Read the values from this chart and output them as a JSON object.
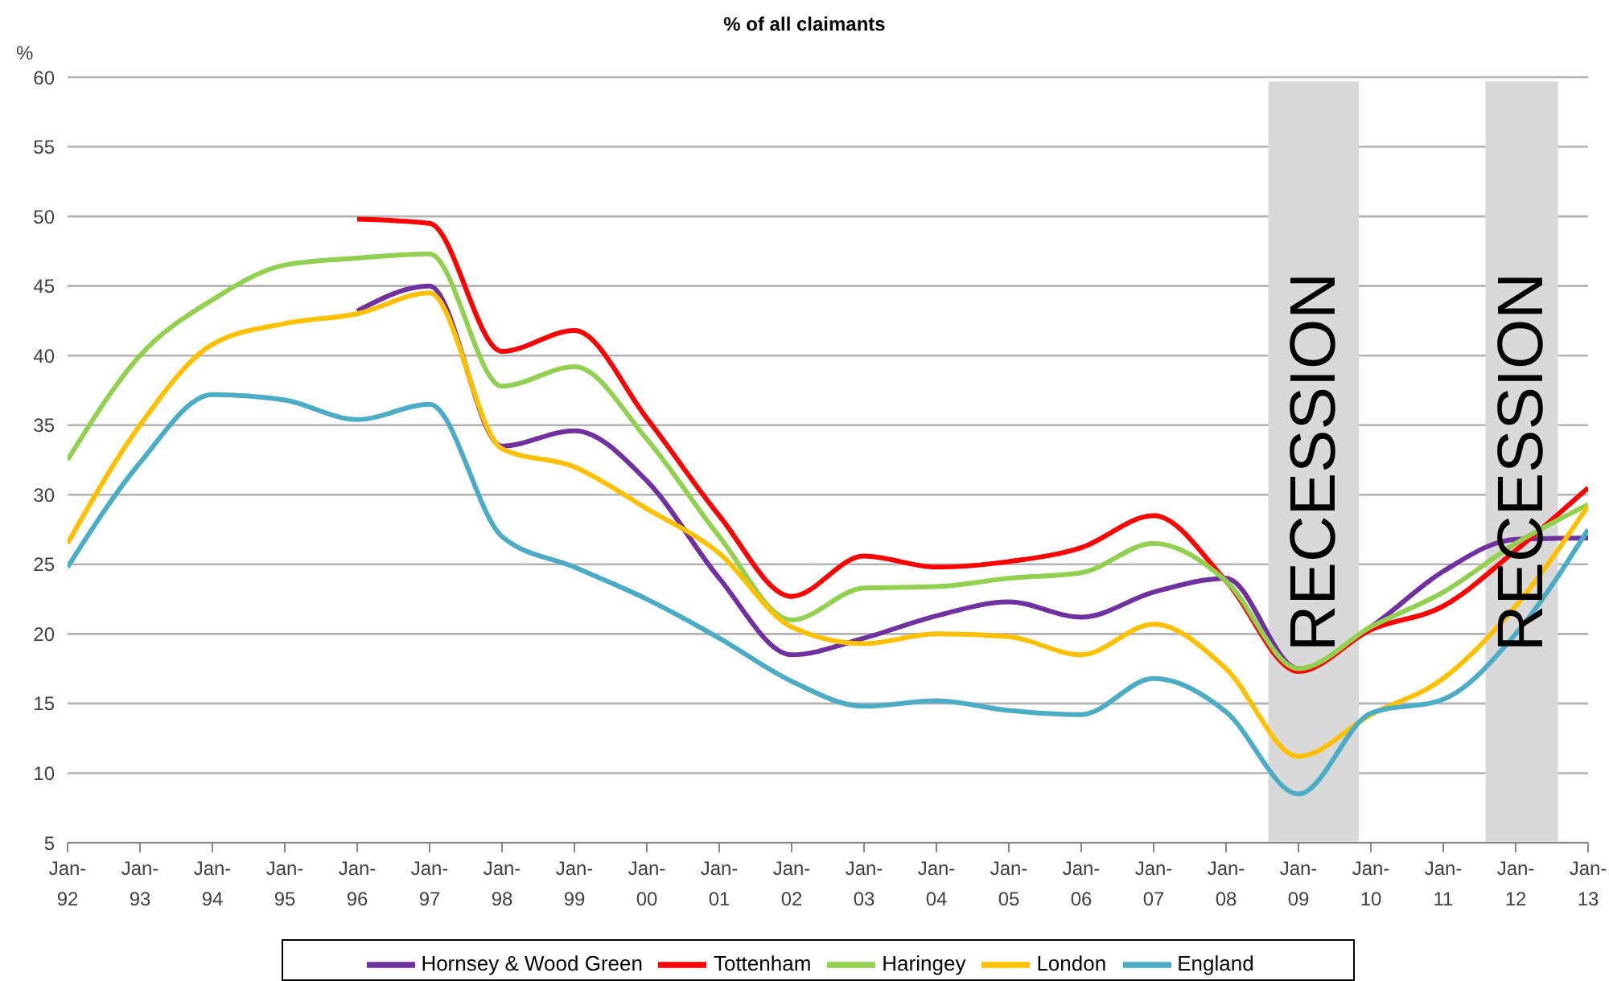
{
  "chart_data": {
    "type": "line",
    "title": "% of all claimants",
    "ylabel": "%",
    "x": [
      "1992-01",
      "1993-01",
      "1994-01",
      "1995-01",
      "1996-01",
      "1997-01",
      "1998-01",
      "1999-01",
      "2000-01",
      "2001-01",
      "2002-01",
      "2003-01",
      "2004-01",
      "2005-01",
      "2006-01",
      "2007-01",
      "2008-01",
      "2009-01",
      "2010-01",
      "2011-01",
      "2012-01",
      "2013-01"
    ],
    "xlim": [
      "1992-01",
      "2013-01"
    ],
    "xticks": [
      {
        "value": "1992-01",
        "label": "Jan-92"
      },
      {
        "value": "1993-01",
        "label": "Jan-93"
      },
      {
        "value": "1994-01",
        "label": "Jan-94"
      },
      {
        "value": "1995-01",
        "label": "Jan-95"
      },
      {
        "value": "1996-01",
        "label": "Jan-96"
      },
      {
        "value": "1997-01",
        "label": "Jan-97"
      },
      {
        "value": "1998-01",
        "label": "Jan-98"
      },
      {
        "value": "1999-01",
        "label": "Jan-99"
      },
      {
        "value": "2000-01",
        "label": "Jan-00"
      },
      {
        "value": "2001-01",
        "label": "Jan-01"
      },
      {
        "value": "2002-01",
        "label": "Jan-02"
      },
      {
        "value": "2003-01",
        "label": "Jan-03"
      },
      {
        "value": "2004-01",
        "label": "Jan-04"
      },
      {
        "value": "2005-01",
        "label": "Jan-05"
      },
      {
        "value": "2006-01",
        "label": "Jan-06"
      },
      {
        "value": "2007-01",
        "label": "Jan-07"
      },
      {
        "value": "2008-01",
        "label": "Jan-08"
      },
      {
        "value": "2009-01",
        "label": "Jan-09"
      },
      {
        "value": "2010-01",
        "label": "Jan-10"
      },
      {
        "value": "2011-01",
        "label": "Jan-11"
      },
      {
        "value": "2012-01",
        "label": "Jan-12"
      },
      {
        "value": "2013-01",
        "label": "Jan-13"
      }
    ],
    "ylim": [
      5,
      60
    ],
    "yticks": [
      5,
      10,
      15,
      20,
      25,
      30,
      35,
      40,
      45,
      50,
      55,
      60
    ],
    "grid": "y",
    "legend": "bottom",
    "marker": "none",
    "line_style": "solid",
    "bands": [
      {
        "axis": "x",
        "from": "2008-08",
        "to": "2009-11",
        "label": "RECESSION",
        "color": "#d9d9d9"
      },
      {
        "axis": "x",
        "from": "2011-08",
        "to": "2012-08",
        "label": "RECESSION",
        "color": "#d9d9d9"
      }
    ],
    "series": [
      {
        "name": "Hornsey & Wood Green",
        "color": "#7030a0",
        "values": [
          null,
          null,
          null,
          null,
          43.2,
          45,
          33.5,
          34.6,
          31,
          24,
          18.5,
          19.7,
          21.3,
          22.3,
          21.2,
          23,
          24,
          17.5,
          20.5,
          24.5,
          26.8,
          26.9
        ]
      },
      {
        "name": "Tottenham",
        "color": "#ff0000",
        "values": [
          null,
          null,
          null,
          null,
          49.8,
          49.5,
          40.3,
          41.8,
          35.5,
          28.5,
          22.7,
          25.6,
          24.8,
          25.2,
          26.2,
          28.5,
          23.8,
          17.3,
          20.3,
          22,
          26,
          30.5
        ]
      },
      {
        "name": "Haringey",
        "color": "#92d050",
        "values": [
          32.5,
          40,
          44,
          46.5,
          47,
          47.3,
          37.8,
          39.2,
          34,
          27,
          21,
          23.3,
          23.4,
          24,
          24.4,
          26.5,
          23.8,
          17.5,
          20.5,
          23,
          26.5,
          29.3
        ]
      },
      {
        "name": "London",
        "color": "#ffc000",
        "values": [
          26.5,
          35,
          40.8,
          42.3,
          43,
          44.5,
          33.3,
          32,
          29,
          25.8,
          20.5,
          19.3,
          20,
          19.8,
          18.5,
          20.7,
          17.5,
          11.2,
          14.2,
          16.8,
          22,
          29.2
        ]
      },
      {
        "name": "England",
        "color": "#4bacc6",
        "values": [
          24.8,
          32.3,
          37.2,
          36.8,
          35.4,
          36.5,
          27,
          24.8,
          22.5,
          19.7,
          16.6,
          14.8,
          15.2,
          14.5,
          14.2,
          16.8,
          14.4,
          8.5,
          14.3,
          15.3,
          20,
          27.5
        ]
      }
    ]
  }
}
